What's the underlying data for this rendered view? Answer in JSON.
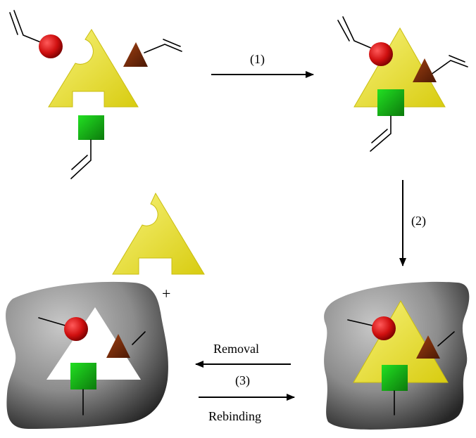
{
  "labels": {
    "step1": "(1)",
    "step2": "(2)",
    "step3": "(3)",
    "removal": "Removal",
    "rebinding": "Rebinding",
    "plus": "+"
  },
  "colors": {
    "template": "#e6dc1e",
    "template_light": "#f7f27a",
    "sphere": "#d01010",
    "triangle": "#7a2a0a",
    "cube": "#1fbf1f",
    "polymer_dark": "#2e2e2e",
    "polymer_light": "#b4b4b4"
  }
}
